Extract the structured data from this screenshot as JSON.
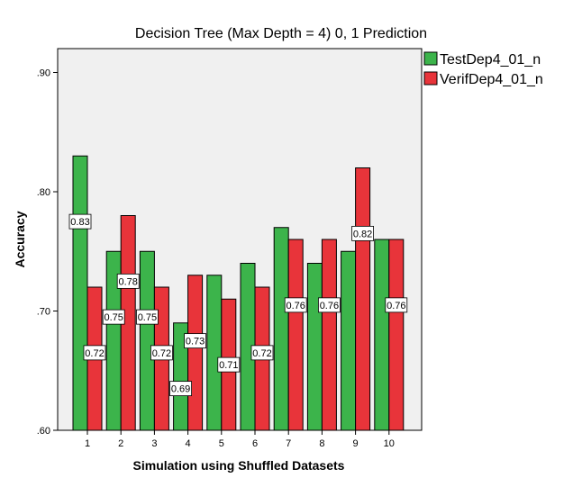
{
  "chart_data": {
    "type": "bar",
    "title": "Decision Tree (Max Depth = 4) 0, 1 Prediction",
    "xlabel": "Simulation using Shuffled Datasets",
    "ylabel": "Accuracy",
    "categories": [
      "1",
      "2",
      "3",
      "4",
      "5",
      "6",
      "7",
      "8",
      "9",
      "10"
    ],
    "ylim": [
      0.6,
      0.92
    ],
    "yticks": [
      0.6,
      0.7,
      0.8,
      0.9
    ],
    "ytick_labels": [
      ".60",
      ".70",
      ".80",
      ".90"
    ],
    "grid": false,
    "legend_position": "right",
    "series": [
      {
        "name": "TestDep4_01_n",
        "color": "#3cb44b",
        "values": [
          0.83,
          0.75,
          0.75,
          0.69,
          0.73,
          0.74,
          0.77,
          0.74,
          0.75,
          0.76
        ],
        "labels": [
          "0.83",
          "0.75",
          "0.75",
          "0.69",
          "",
          "",
          "",
          "",
          "",
          ""
        ]
      },
      {
        "name": "VerifDep4_01_n",
        "color": "#e8343a",
        "values": [
          0.72,
          0.78,
          0.72,
          0.73,
          0.71,
          0.72,
          0.76,
          0.76,
          0.82,
          0.76
        ],
        "labels": [
          "0.72",
          "0.78",
          "0.72",
          "0.73",
          "0.71",
          "0.72",
          "0.76",
          "0.76",
          "0.82",
          "0.76"
        ]
      }
    ],
    "plot_background": "#f0f0f0"
  }
}
